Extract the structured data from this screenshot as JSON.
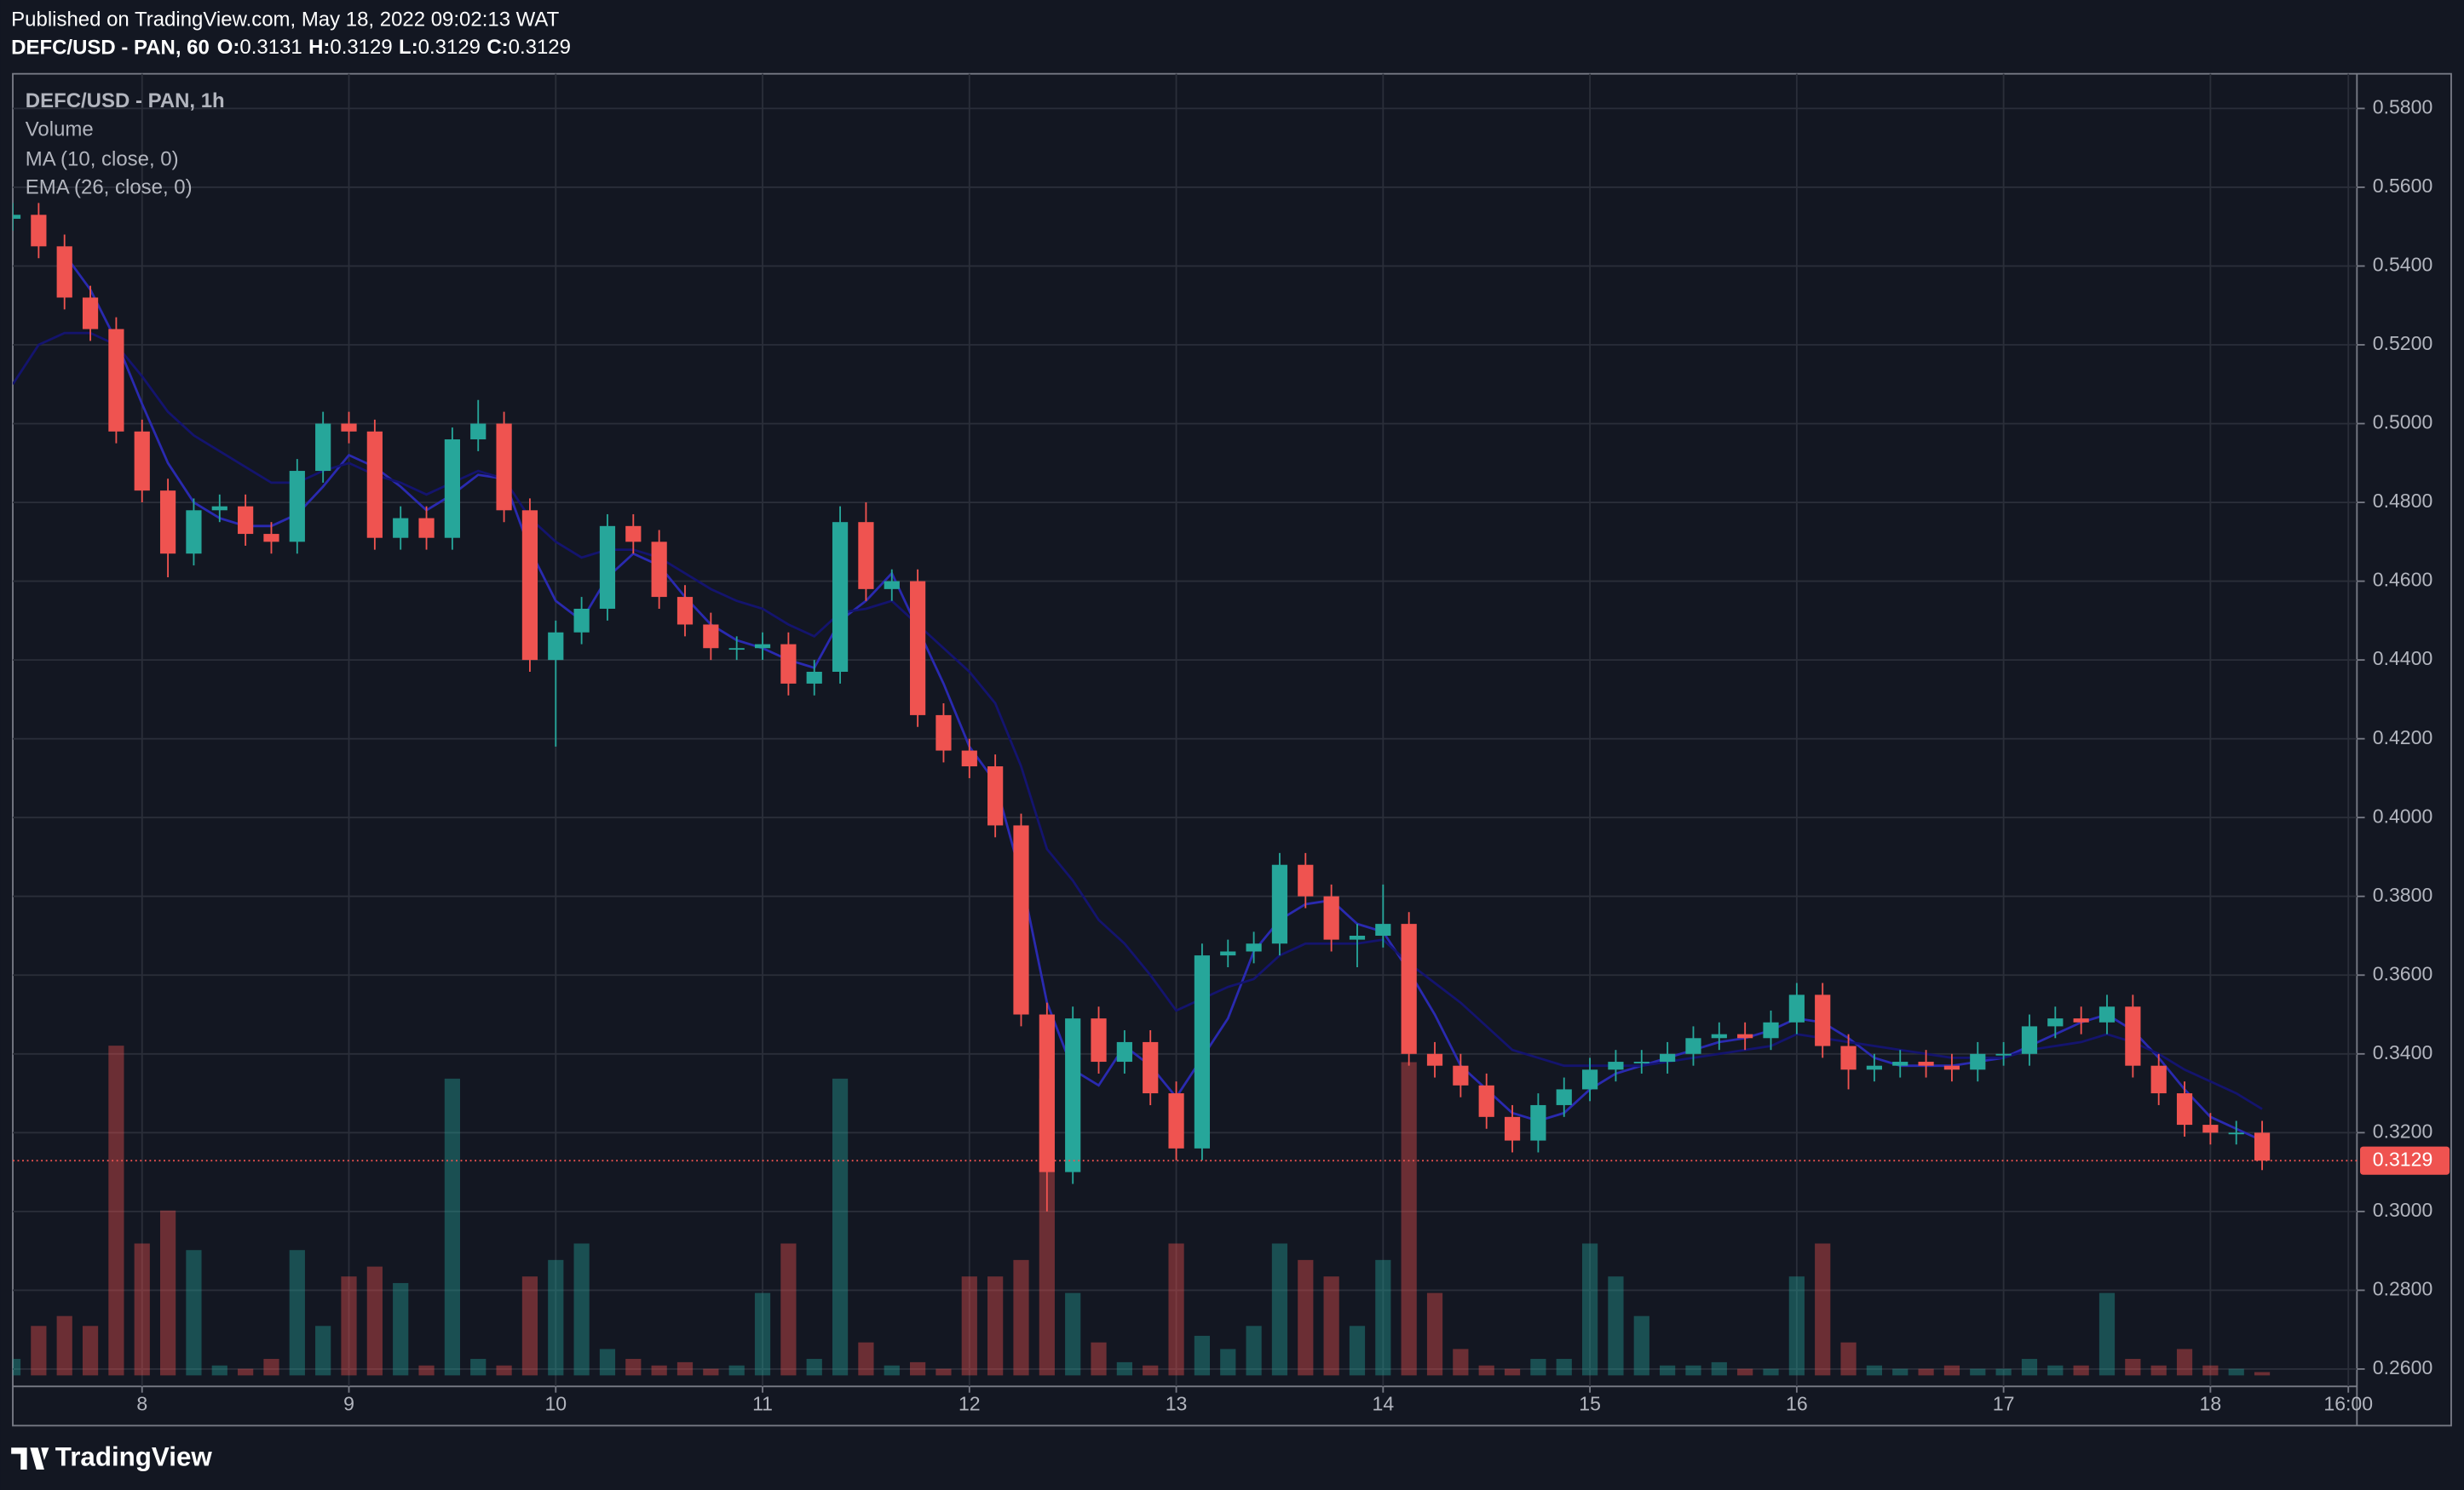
{
  "header": {
    "published": "Published on TradingView.com, May 18, 2022 09:02:13 WAT",
    "symbol": "DEFC/USD - PAN, 60",
    "ohlc": [
      [
        "O:",
        "0.3131"
      ],
      [
        "H:",
        "0.3129"
      ],
      [
        "L:",
        "0.3129"
      ],
      [
        "C:",
        "0.3129"
      ]
    ]
  },
  "footer": {
    "brand": "TradingView"
  },
  "chart_data": {
    "type": "candlestick",
    "title": "DEFC/USD - PAN, 1h",
    "volume_label": "Volume",
    "up_color": "#26a69a",
    "down_color": "#ef5350",
    "grid": true,
    "xlim": [
      -15,
      257
    ],
    "xticks": [
      {
        "value": 0,
        "label": "8"
      },
      {
        "value": 24,
        "label": "9"
      },
      {
        "value": 48,
        "label": "10"
      },
      {
        "value": 72,
        "label": "11"
      },
      {
        "value": 96,
        "label": "12"
      },
      {
        "value": 120,
        "label": "13"
      },
      {
        "value": 144,
        "label": "14"
      },
      {
        "value": 168,
        "label": "15"
      },
      {
        "value": 192,
        "label": "16"
      },
      {
        "value": 216,
        "label": "17"
      },
      {
        "value": 240,
        "label": "18"
      },
      {
        "value": 256,
        "label": "16:00"
      }
    ],
    "ylim": [
      0.2556,
      0.5888
    ],
    "yticks": [
      {
        "value": 0.26,
        "label": "0.2600"
      },
      {
        "value": 0.28,
        "label": "0.2800"
      },
      {
        "value": 0.3,
        "label": "0.3000"
      },
      {
        "value": 0.32,
        "label": "0.3200"
      },
      {
        "value": 0.34,
        "label": "0.3400"
      },
      {
        "value": 0.36,
        "label": "0.3600"
      },
      {
        "value": 0.38,
        "label": "0.3800"
      },
      {
        "value": 0.4,
        "label": "0.4000"
      },
      {
        "value": 0.42,
        "label": "0.4200"
      },
      {
        "value": 0.44,
        "label": "0.4400"
      },
      {
        "value": 0.46,
        "label": "0.4600"
      },
      {
        "value": 0.48,
        "label": "0.4800"
      },
      {
        "value": 0.5,
        "label": "0.5000"
      },
      {
        "value": 0.52,
        "label": "0.5200"
      },
      {
        "value": 0.54,
        "label": "0.5400"
      },
      {
        "value": 0.56,
        "label": "0.5600"
      },
      {
        "value": 0.58,
        "label": "0.5800"
      }
    ],
    "last_price": {
      "value": 0.3129,
      "label": "0.3129"
    },
    "x": [
      -15,
      -12,
      -9,
      -6,
      -3,
      0,
      3,
      6,
      9,
      12,
      15,
      18,
      21,
      24,
      27,
      30,
      33,
      36,
      39,
      42,
      45,
      48,
      51,
      54,
      57,
      60,
      63,
      66,
      69,
      72,
      75,
      78,
      81,
      84,
      87,
      90,
      93,
      96,
      99,
      102,
      105,
      108,
      111,
      114,
      117,
      120,
      123,
      126,
      129,
      132,
      135,
      138,
      141,
      144,
      147,
      150,
      153,
      156,
      159,
      162,
      165,
      168,
      171,
      174,
      177,
      180,
      183,
      186,
      189,
      192,
      195,
      198,
      201,
      204,
      207,
      210,
      213,
      216,
      219,
      222,
      225,
      228,
      231,
      234,
      237,
      240,
      243,
      246
    ],
    "open": [
      0.552,
      0.553,
      0.545,
      0.532,
      0.524,
      0.498,
      0.483,
      0.467,
      0.478,
      0.479,
      0.472,
      0.47,
      0.488,
      0.5,
      0.498,
      0.471,
      0.476,
      0.471,
      0.496,
      0.5,
      0.478,
      0.44,
      0.447,
      0.453,
      0.474,
      0.47,
      0.456,
      0.449,
      0.443,
      0.443,
      0.444,
      0.434,
      0.437,
      0.475,
      0.458,
      0.46,
      0.426,
      0.417,
      0.413,
      0.398,
      0.35,
      0.31,
      0.349,
      0.338,
      0.343,
      0.33,
      0.316,
      0.365,
      0.366,
      0.368,
      0.388,
      0.38,
      0.369,
      0.37,
      0.373,
      0.34,
      0.337,
      0.332,
      0.324,
      0.318,
      0.327,
      0.331,
      0.336,
      0.338,
      0.338,
      0.34,
      0.344,
      0.345,
      0.344,
      0.348,
      0.355,
      0.342,
      0.336,
      0.337,
      0.338,
      0.337,
      0.336,
      0.34,
      0.34,
      0.347,
      0.349,
      0.348,
      0.352,
      0.337,
      0.33,
      0.322,
      0.32,
      0.32
    ],
    "high": [
      0.556,
      0.556,
      0.548,
      0.535,
      0.527,
      0.501,
      0.486,
      0.481,
      0.482,
      0.482,
      0.475,
      0.491,
      0.503,
      0.503,
      0.501,
      0.479,
      0.479,
      0.499,
      0.506,
      0.503,
      0.481,
      0.45,
      0.456,
      0.477,
      0.477,
      0.473,
      0.459,
      0.452,
      0.446,
      0.447,
      0.447,
      0.44,
      0.479,
      0.48,
      0.463,
      0.463,
      0.429,
      0.42,
      0.416,
      0.401,
      0.353,
      0.352,
      0.352,
      0.346,
      0.346,
      0.333,
      0.368,
      0.369,
      0.371,
      0.391,
      0.391,
      0.383,
      0.373,
      0.383,
      0.376,
      0.343,
      0.34,
      0.335,
      0.327,
      0.33,
      0.334,
      0.339,
      0.341,
      0.341,
      0.343,
      0.347,
      0.348,
      0.348,
      0.351,
      0.358,
      0.358,
      0.345,
      0.34,
      0.341,
      0.341,
      0.34,
      0.343,
      0.343,
      0.35,
      0.352,
      0.352,
      0.355,
      0.355,
      0.34,
      0.333,
      0.325,
      0.323,
      0.323
    ],
    "low": [
      0.549,
      0.542,
      0.529,
      0.521,
      0.495,
      0.48,
      0.461,
      0.464,
      0.475,
      0.469,
      0.467,
      0.467,
      0.485,
      0.495,
      0.468,
      0.468,
      0.468,
      0.468,
      0.493,
      0.475,
      0.437,
      0.418,
      0.444,
      0.45,
      0.467,
      0.453,
      0.446,
      0.44,
      0.44,
      0.44,
      0.431,
      0.431,
      0.434,
      0.455,
      0.455,
      0.423,
      0.414,
      0.41,
      0.395,
      0.347,
      0.3,
      0.307,
      0.335,
      0.335,
      0.327,
      0.313,
      0.313,
      0.362,
      0.363,
      0.365,
      0.377,
      0.366,
      0.362,
      0.367,
      0.337,
      0.334,
      0.329,
      0.321,
      0.315,
      0.315,
      0.324,
      0.328,
      0.333,
      0.335,
      0.335,
      0.337,
      0.341,
      0.341,
      0.341,
      0.345,
      0.339,
      0.331,
      0.333,
      0.334,
      0.334,
      0.333,
      0.333,
      0.337,
      0.337,
      0.344,
      0.345,
      0.345,
      0.334,
      0.327,
      0.319,
      0.317,
      0.317,
      0.3105
    ],
    "close": [
      0.553,
      0.545,
      0.532,
      0.524,
      0.498,
      0.483,
      0.467,
      0.478,
      0.479,
      0.472,
      0.47,
      0.488,
      0.5,
      0.498,
      0.471,
      0.476,
      0.471,
      0.496,
      0.5,
      0.478,
      0.44,
      0.447,
      0.453,
      0.474,
      0.47,
      0.456,
      0.449,
      0.443,
      0.443,
      0.444,
      0.434,
      0.437,
      0.475,
      0.458,
      0.46,
      0.426,
      0.417,
      0.413,
      0.398,
      0.35,
      0.31,
      0.349,
      0.338,
      0.343,
      0.33,
      0.316,
      0.365,
      0.366,
      0.368,
      0.388,
      0.38,
      0.369,
      0.37,
      0.373,
      0.34,
      0.337,
      0.332,
      0.324,
      0.318,
      0.327,
      0.331,
      0.336,
      0.338,
      0.338,
      0.34,
      0.344,
      0.345,
      0.344,
      0.348,
      0.355,
      0.342,
      0.336,
      0.337,
      0.338,
      0.337,
      0.336,
      0.34,
      0.34,
      0.347,
      0.349,
      0.348,
      0.352,
      0.337,
      0.33,
      0.322,
      0.32,
      0.32,
      0.3129
    ],
    "volume": [
      5,
      15,
      18,
      15,
      100,
      40,
      50,
      38,
      3,
      2,
      5,
      38,
      15,
      30,
      33,
      28,
      3,
      90,
      5,
      3,
      30,
      35,
      40,
      8,
      5,
      3,
      4,
      2,
      3,
      25,
      40,
      5,
      90,
      10,
      3,
      4,
      2,
      30,
      30,
      35,
      90,
      25,
      10,
      4,
      3,
      40,
      12,
      8,
      15,
      40,
      35,
      30,
      15,
      35,
      95,
      25,
      8,
      3,
      2,
      5,
      5,
      40,
      30,
      18,
      3,
      3,
      4,
      2,
      2,
      30,
      40,
      10,
      3,
      2,
      2,
      3,
      2,
      2,
      5,
      3,
      3,
      25,
      5,
      3,
      8,
      3,
      2,
      1
    ],
    "series": [
      {
        "name": "MA (10, close, 0)",
        "color": "#2a2ab0",
        "values": [
          null,
          null,
          0.543,
          0.534,
          0.521,
          0.505,
          0.49,
          0.48,
          0.476,
          0.474,
          0.474,
          0.477,
          0.484,
          0.492,
          0.489,
          0.484,
          0.478,
          0.482,
          0.487,
          0.486,
          0.468,
          0.455,
          0.45,
          0.461,
          0.467,
          0.464,
          0.456,
          0.449,
          0.445,
          0.443,
          0.44,
          0.438,
          0.45,
          0.455,
          0.462,
          0.448,
          0.434,
          0.418,
          0.409,
          0.385,
          0.353,
          0.336,
          0.332,
          0.342,
          0.337,
          0.329,
          0.339,
          0.349,
          0.366,
          0.374,
          0.378,
          0.379,
          0.373,
          0.371,
          0.361,
          0.35,
          0.337,
          0.331,
          0.325,
          0.323,
          0.325,
          0.331,
          0.335,
          0.337,
          0.339,
          0.341,
          0.343,
          0.344,
          0.346,
          0.349,
          0.348,
          0.344,
          0.339,
          0.337,
          0.337,
          0.337,
          0.338,
          0.339,
          0.342,
          0.345,
          0.348,
          0.35,
          0.346,
          0.339,
          0.331,
          0.324,
          0.321,
          0.318
        ]
      },
      {
        "name": "EMA (26, close, 0)",
        "color": "#14146e",
        "values": [
          0.51,
          0.52,
          0.523,
          0.523,
          0.52,
          0.512,
          0.503,
          0.497,
          0.493,
          0.489,
          0.485,
          0.485,
          0.488,
          0.49,
          0.487,
          0.485,
          0.482,
          0.485,
          0.488,
          0.486,
          0.476,
          0.47,
          0.466,
          0.468,
          0.468,
          0.466,
          0.462,
          0.458,
          0.455,
          0.453,
          0.449,
          0.446,
          0.452,
          0.453,
          0.455,
          0.449,
          0.443,
          0.437,
          0.429,
          0.413,
          0.392,
          0.384,
          0.374,
          0.368,
          0.36,
          0.351,
          0.354,
          0.357,
          0.359,
          0.365,
          0.368,
          0.368,
          0.368,
          0.369,
          0.363,
          0.358,
          0.353,
          0.347,
          0.341,
          0.339,
          0.337,
          0.337,
          0.337,
          0.337,
          0.338,
          0.339,
          0.34,
          0.341,
          0.342,
          0.345,
          0.344,
          0.343,
          0.342,
          0.341,
          0.34,
          0.339,
          0.339,
          0.339,
          0.341,
          0.342,
          0.343,
          0.345,
          0.343,
          0.34,
          0.336,
          0.333,
          0.33,
          0.326
        ]
      }
    ]
  }
}
